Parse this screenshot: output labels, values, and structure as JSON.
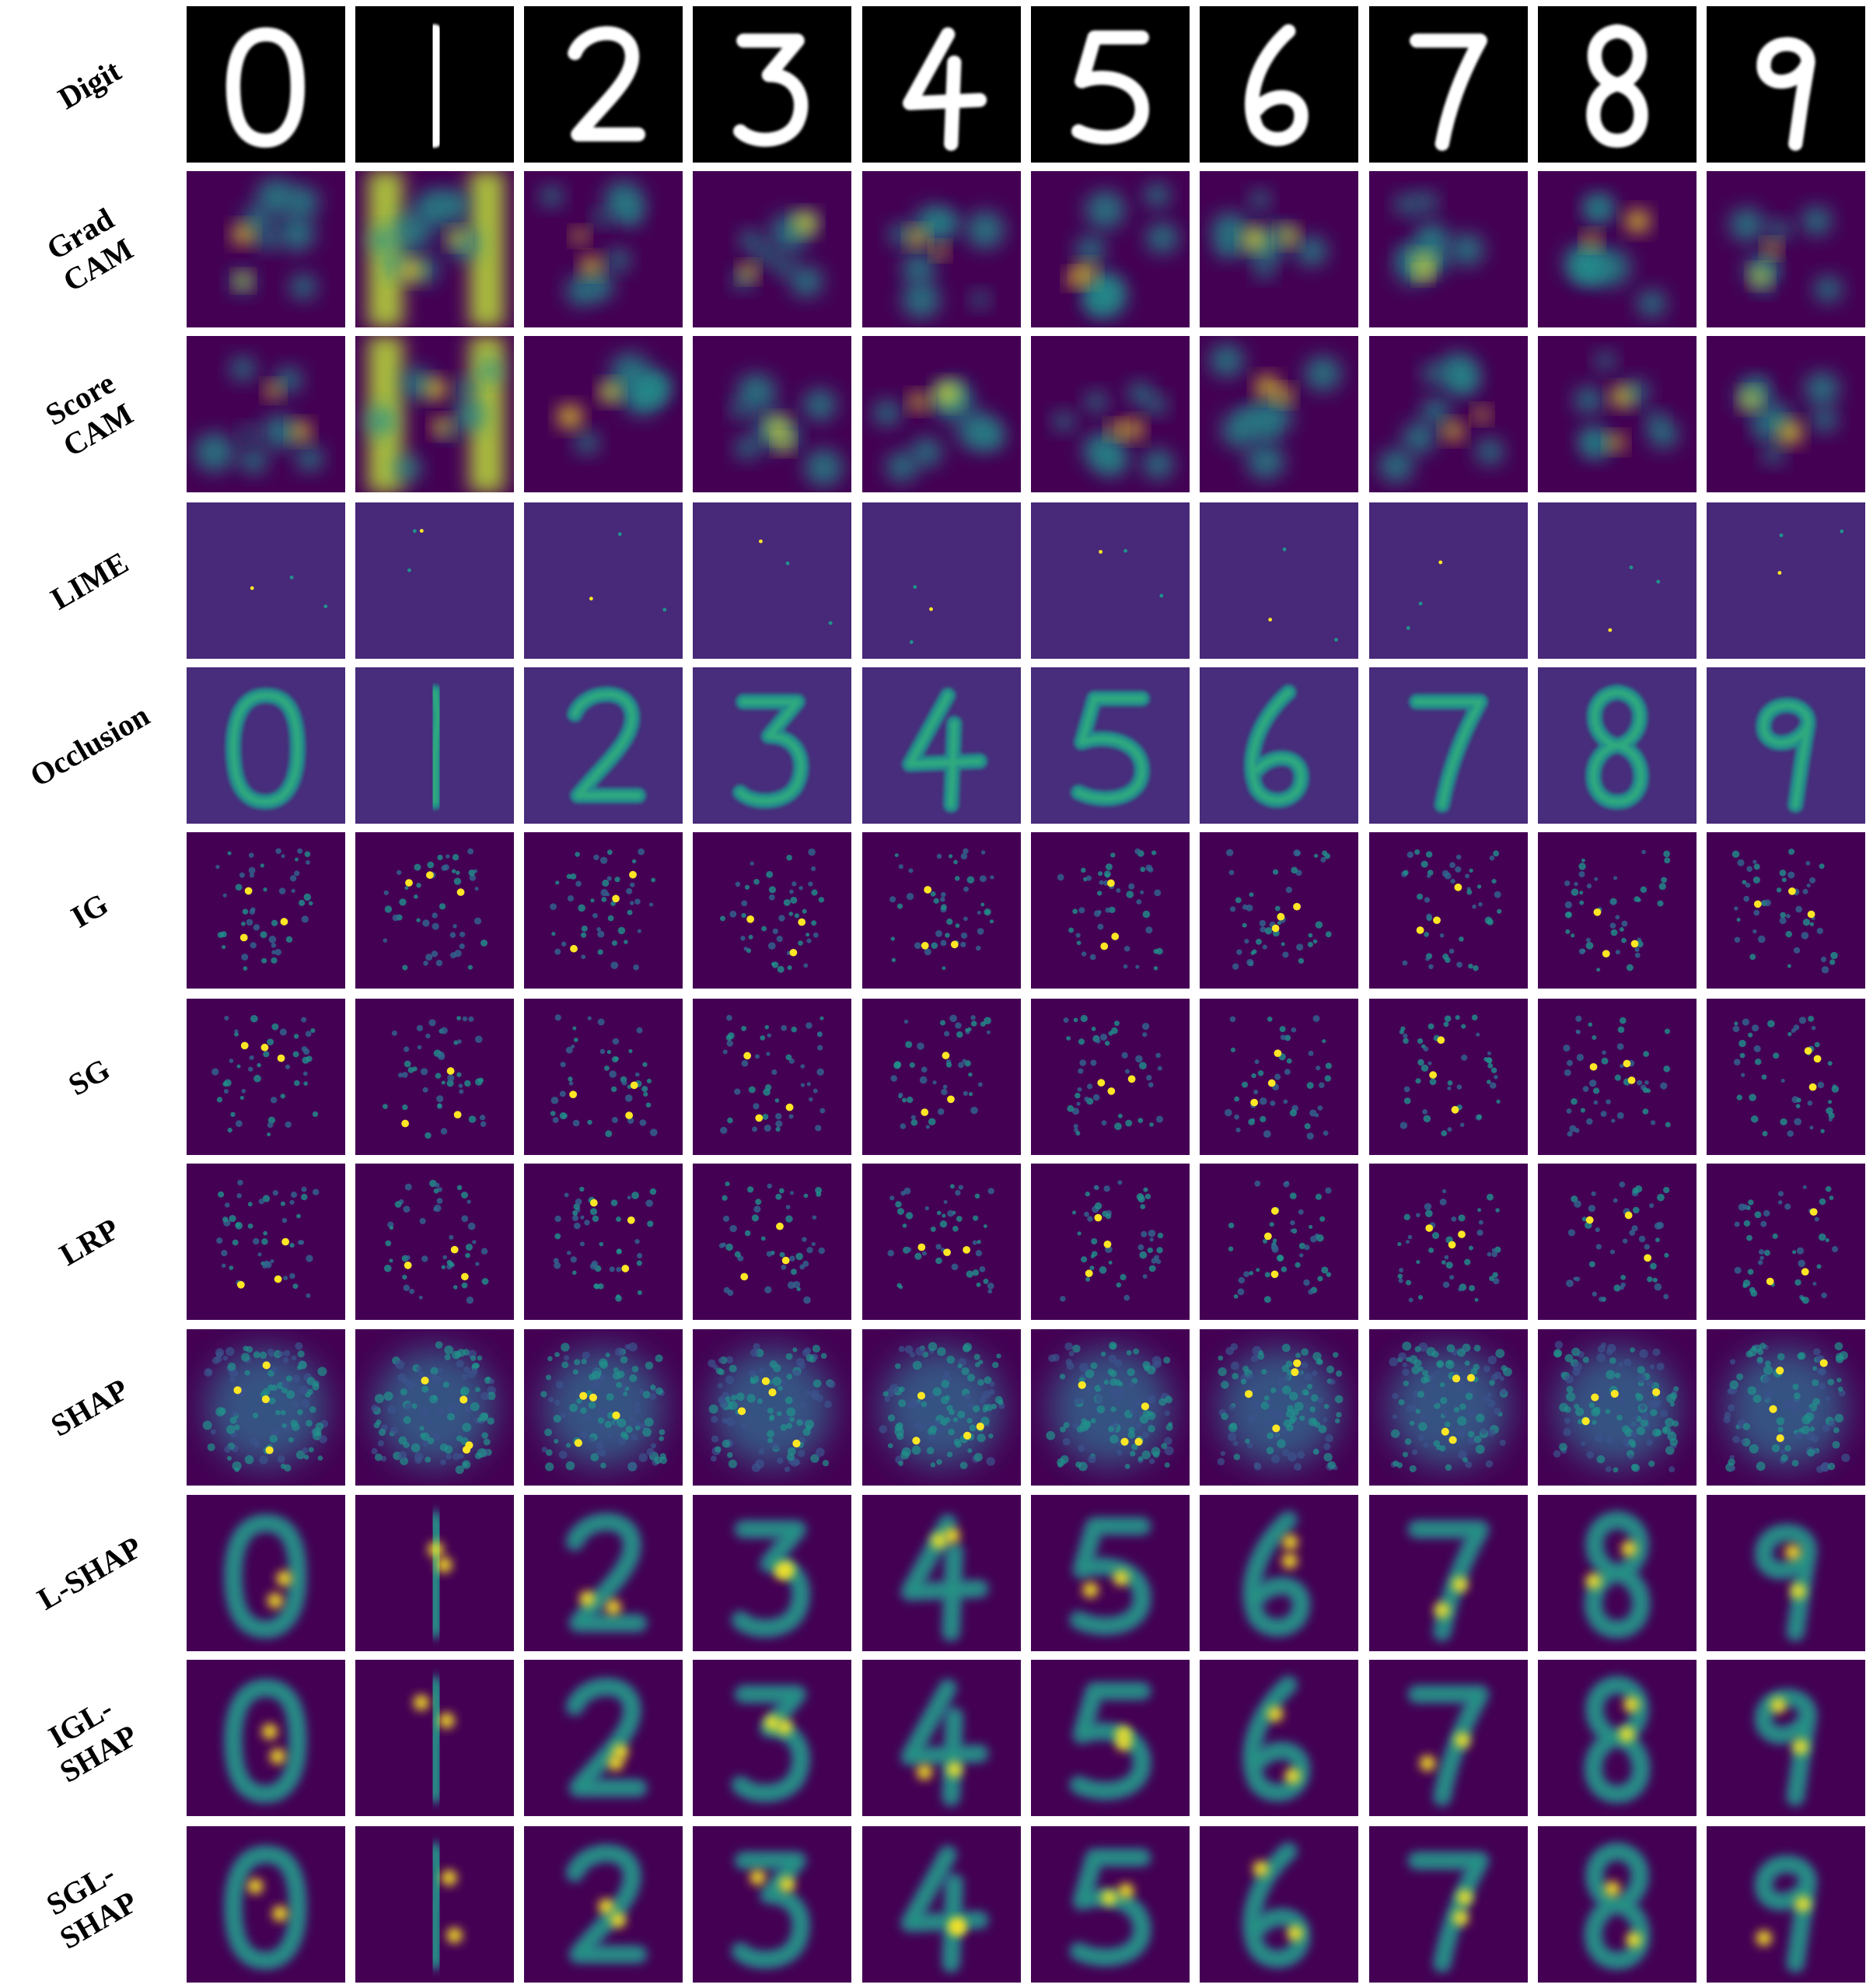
{
  "rows": [
    {
      "label": "Digit",
      "kind": "digit"
    },
    {
      "label": "Grad\nCAM",
      "kind": "cam"
    },
    {
      "label": "Score\nCAM",
      "kind": "cam"
    },
    {
      "label": "LIME",
      "kind": "lime"
    },
    {
      "label": "Occlusion",
      "kind": "occlusion"
    },
    {
      "label": "IG",
      "kind": "sparse"
    },
    {
      "label": "SG",
      "kind": "sparse"
    },
    {
      "label": "LRP",
      "kind": "sparse"
    },
    {
      "label": "SHAP",
      "kind": "dense"
    },
    {
      "label": "L-SHAP",
      "kind": "lshap"
    },
    {
      "label": "IGL-\nSHAP",
      "kind": "lshap"
    },
    {
      "label": "SGL-\nSHAP",
      "kind": "lshap"
    }
  ],
  "digits": [
    "0",
    "1",
    "2",
    "3",
    "4",
    "5",
    "6",
    "7",
    "8",
    "9"
  ],
  "colors": {
    "background_low": "#440154",
    "mid": "#21918c",
    "high": "#fde725",
    "digit_bg": "#000000",
    "digit_fg": "#ffffff"
  }
}
